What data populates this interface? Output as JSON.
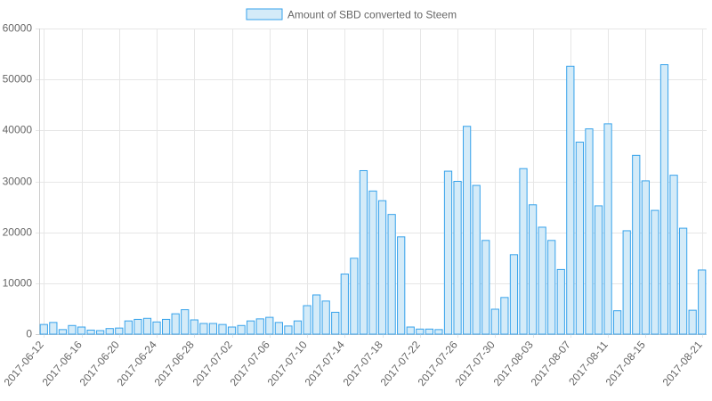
{
  "chart_data": {
    "type": "bar",
    "legend": {
      "label": "Amount of SBD converted to Steem",
      "position": "top"
    },
    "colors": {
      "bar_fill": "#d4ebf8",
      "bar_stroke": "#36a2eb",
      "grid": "#e6e6e6",
      "text": "#666666"
    },
    "grid": true,
    "ylim": [
      0,
      60000
    ],
    "yticks": [
      "0",
      "10000",
      "20000",
      "30000",
      "40000",
      "50000",
      "60000"
    ],
    "xtick_labels": [
      "2017-06-12",
      "2017-06-16",
      "2017-06-20",
      "2017-06-24",
      "2017-06-28",
      "2017-07-02",
      "2017-07-06",
      "2017-07-10",
      "2017-07-14",
      "2017-07-18",
      "2017-07-22",
      "2017-07-26",
      "2017-07-30",
      "2017-08-03",
      "2017-08-07",
      "2017-08-11",
      "2017-08-15",
      "2017-08-21"
    ],
    "categories": [
      "2017-06-12",
      "2017-06-13",
      "2017-06-14",
      "2017-06-15",
      "2017-06-16",
      "2017-06-17",
      "2017-06-18",
      "2017-06-19",
      "2017-06-20",
      "2017-06-21",
      "2017-06-22",
      "2017-06-23",
      "2017-06-24",
      "2017-06-25",
      "2017-06-26",
      "2017-06-27",
      "2017-06-28",
      "2017-06-29",
      "2017-06-30",
      "2017-07-01",
      "2017-07-02",
      "2017-07-03",
      "2017-07-04",
      "2017-07-05",
      "2017-07-06",
      "2017-07-07",
      "2017-07-08",
      "2017-07-09",
      "2017-07-10",
      "2017-07-11",
      "2017-07-12",
      "2017-07-13",
      "2017-07-14",
      "2017-07-15",
      "2017-07-16",
      "2017-07-17",
      "2017-07-18",
      "2017-07-19",
      "2017-07-20",
      "2017-07-21",
      "2017-07-22",
      "2017-07-23",
      "2017-07-24",
      "2017-07-25",
      "2017-07-26",
      "2017-07-27",
      "2017-07-28",
      "2017-07-29",
      "2017-07-30",
      "2017-07-31",
      "2017-08-01",
      "2017-08-02",
      "2017-08-03",
      "2017-08-04",
      "2017-08-05",
      "2017-08-06",
      "2017-08-07",
      "2017-08-08",
      "2017-08-09",
      "2017-08-10",
      "2017-08-11",
      "2017-08-12",
      "2017-08-13",
      "2017-08-14",
      "2017-08-15",
      "2017-08-16",
      "2017-08-17",
      "2017-08-18",
      "2017-08-19",
      "2017-08-20",
      "2017-08-21"
    ],
    "values": [
      1900,
      2300,
      900,
      1700,
      1400,
      800,
      700,
      1100,
      1200,
      2600,
      2900,
      3100,
      2400,
      2900,
      4000,
      4800,
      2800,
      2100,
      2100,
      1900,
      1400,
      1700,
      2600,
      3000,
      3300,
      2300,
      1600,
      2600,
      5600,
      7700,
      6500,
      4300,
      11800,
      14900,
      32100,
      28100,
      26200,
      23500,
      19100,
      1400,
      1000,
      1000,
      900,
      32000,
      30000,
      40800,
      29200,
      18400,
      4900,
      7200,
      15600,
      32500,
      25400,
      21000,
      18400,
      12700,
      52600,
      37700,
      40300,
      25200,
      41300,
      4600,
      20300,
      35100,
      30100,
      24300,
      52900,
      31200,
      20800,
      4700,
      12600
    ]
  }
}
